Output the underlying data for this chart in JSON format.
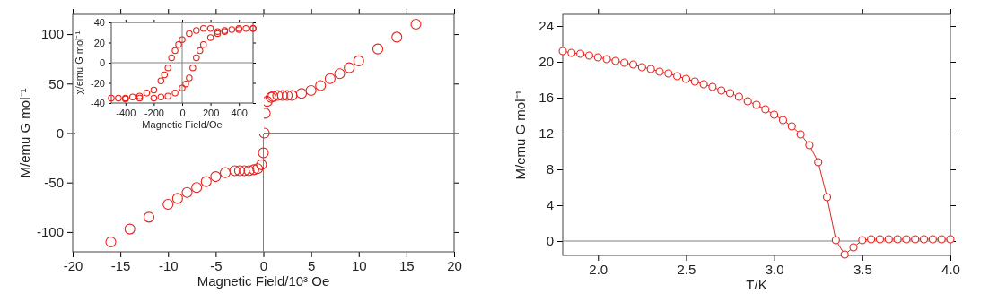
{
  "chart_data": [
    {
      "type": "scatter",
      "xlabel": "Magnetic Field/10³ Oe",
      "ylabel": "M/emu G mol⁻¹",
      "color": "#e4221c",
      "marker": "circle",
      "x": [
        -16,
        -14,
        -12,
        -10,
        -9,
        -8,
        -7,
        -6,
        -5,
        -4,
        -3,
        -2.5,
        -2,
        -1.5,
        -1,
        -0.6,
        -0.2,
        0,
        0.1,
        0.2,
        0.4,
        0.8,
        1,
        1.5,
        2,
        2.5,
        3,
        4,
        5,
        6,
        7,
        8,
        9,
        10,
        12,
        14,
        16
      ],
      "values": [
        -110,
        -97,
        -85,
        -72,
        -66,
        -60,
        -55,
        -49,
        -44,
        -40,
        -38,
        -38,
        -38,
        -38,
        -37,
        -36,
        -32,
        -20,
        0,
        20,
        32,
        36,
        37,
        38,
        38,
        38,
        38,
        40,
        43,
        48,
        55,
        60,
        66,
        73,
        85,
        97,
        110
      ],
      "xlim": [
        -20,
        20
      ],
      "xticks": [
        -20,
        -15,
        -10,
        -5,
        0,
        5,
        10,
        15,
        20
      ],
      "ylim": [
        -120,
        120
      ],
      "yticks": [
        -100,
        -50,
        0,
        50,
        100
      ],
      "ref_lines": [
        {
          "axis": "x",
          "value": 0,
          "color": "#808080"
        },
        {
          "axis": "y",
          "value": 0,
          "color": "#808080"
        }
      ]
    },
    {
      "type": "scatter",
      "xlabel": "Magnetic Field/Oe",
      "ylabel": "χ/emu G mol⁻¹",
      "color": "#e4221c",
      "marker": "circle",
      "x": [
        500,
        450,
        400,
        350,
        300,
        250,
        200,
        150,
        100,
        50,
        0,
        -25,
        -50,
        -75,
        -100,
        -125,
        -150,
        -200,
        -250,
        -300,
        -350,
        -400,
        -450,
        -500,
        -400,
        -300,
        -200,
        -150,
        -100,
        -50,
        0,
        25,
        50,
        75,
        100,
        125,
        150,
        200,
        250,
        300,
        400,
        500
      ],
      "values": [
        34,
        34,
        34,
        33,
        32,
        31,
        34,
        34,
        32,
        29,
        23,
        18,
        12,
        5,
        -5,
        -12,
        -18,
        -27,
        -30,
        -33,
        -34,
        -35,
        -35,
        -35,
        -36,
        -35,
        -35,
        -34,
        -33,
        -30,
        -25,
        -21,
        -15,
        -5,
        5,
        12,
        18,
        25,
        29,
        31,
        33,
        34
      ],
      "xlim": [
        -500,
        500
      ],
      "xticks": [
        -400,
        -200,
        0,
        200,
        400
      ],
      "ylim": [
        -40,
        40
      ],
      "yticks": [
        -40,
        -20,
        0,
        20,
        40
      ],
      "ref_lines": [
        {
          "axis": "x",
          "value": 0,
          "color": "#808080"
        },
        {
          "axis": "y",
          "value": 0,
          "color": "#808080"
        }
      ]
    },
    {
      "type": "line",
      "xlabel": "T/K",
      "ylabel": "M/emu G mol⁻¹",
      "color": "#e4221c",
      "marker": "circle",
      "line_style": "solid",
      "x": [
        1.8,
        1.85,
        1.9,
        1.95,
        2.0,
        2.05,
        2.1,
        2.15,
        2.2,
        2.25,
        2.3,
        2.35,
        2.4,
        2.45,
        2.5,
        2.55,
        2.6,
        2.65,
        2.7,
        2.75,
        2.8,
        2.85,
        2.9,
        2.95,
        3.0,
        3.05,
        3.1,
        3.15,
        3.2,
        3.25,
        3.3,
        3.35,
        3.4,
        3.45,
        3.5,
        3.55,
        3.6,
        3.65,
        3.7,
        3.75,
        3.8,
        3.85,
        3.9,
        3.95,
        4.0
      ],
      "values": [
        21.2,
        21.0,
        20.9,
        20.7,
        20.5,
        20.3,
        20.1,
        19.9,
        19.7,
        19.4,
        19.2,
        18.9,
        18.7,
        18.4,
        18.1,
        17.8,
        17.5,
        17.2,
        16.8,
        16.5,
        16.1,
        15.6,
        15.2,
        14.7,
        14.1,
        13.5,
        12.8,
        11.9,
        10.7,
        8.8,
        4.9,
        0.1,
        -1.5,
        -0.7,
        0.1,
        0.2,
        0.2,
        0.2,
        0.2,
        0.2,
        0.2,
        0.2,
        0.2,
        0.2,
        0.2
      ],
      "xlim": [
        1.8,
        4.0
      ],
      "xticks": [
        {
          "value": 2.0,
          "label": "2.0"
        },
        {
          "value": 2.5,
          "label": "2.5"
        },
        {
          "value": 3.0,
          "label": "3.0"
        },
        {
          "value": 3.5,
          "label": "3.5"
        },
        {
          "value": 4.0,
          "label": "4.0"
        }
      ],
      "ylim": [
        -1.6,
        25.3
      ],
      "yticks": [
        0,
        4,
        8,
        12,
        16,
        20,
        24
      ],
      "ref_lines": [
        {
          "axis": "y",
          "value": 0,
          "color": "#808080"
        }
      ]
    }
  ]
}
